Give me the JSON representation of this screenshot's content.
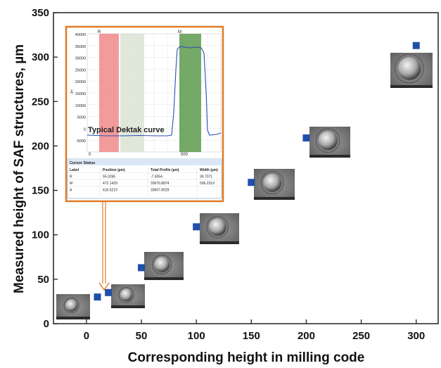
{
  "chart_data": {
    "type": "scatter",
    "xlabel": "Corresponding height in milling code",
    "ylabel": "Measured height of SAF structures, µm",
    "xlim": [
      -30,
      320
    ],
    "ylim": [
      0,
      350
    ],
    "x_ticks": [
      0,
      50,
      100,
      150,
      200,
      250,
      300
    ],
    "y_ticks": [
      0,
      50,
      100,
      150,
      200,
      250,
      300,
      350
    ],
    "grid": false,
    "series": [
      {
        "color": "#1f4fa8",
        "marker": "square",
        "points": [
          {
            "x": 10,
            "y": 30
          },
          {
            "x": 20,
            "y": 35
          },
          {
            "x": 50,
            "y": 63
          },
          {
            "x": 100,
            "y": 109
          },
          {
            "x": 150,
            "y": 159
          },
          {
            "x": 200,
            "y": 209
          },
          {
            "x": 300,
            "y": 313
          }
        ]
      }
    ],
    "inset": {
      "caption": "Typical Dektak curve",
      "y_ticks": [
        "40000",
        "35000",
        "30000",
        "25000",
        "20000",
        "15000",
        "10000",
        "5000",
        "0",
        "-5000"
      ],
      "x_ticks": [
        "0",
        "500"
      ],
      "y_unit": "Å",
      "cursor_labels": [
        "R",
        "M"
      ],
      "table": {
        "title": "Cursor Status",
        "headers": [
          "Label",
          "Position (µm)",
          "Total Profile (µm)",
          "Width (µm)"
        ],
        "rows": [
          [
            "R",
            "55.0266",
            "-7.6054",
            "39.7071"
          ],
          [
            "M",
            "472.1429",
            "33676.8874",
            "536.2319"
          ],
          [
            "A",
            "416.5219",
            "33667.8029",
            ""
          ]
        ]
      }
    }
  }
}
